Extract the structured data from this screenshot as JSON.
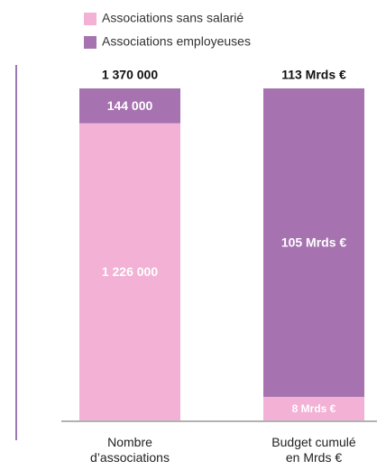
{
  "chart_data": {
    "type": "stacked_bar_100",
    "categories": [
      "Nombre d’associations",
      "Budget cumulé en Mrds €"
    ],
    "series": [
      {
        "name": "Associations sans salarié",
        "color": "#f2b1d5",
        "values": [
          1226000,
          8
        ],
        "value_labels": [
          "1 226 000",
          "8 Mrds €"
        ]
      },
      {
        "name": "Associations employeuses",
        "color": "#a673b0",
        "values": [
          144000,
          105
        ],
        "value_labels": [
          "144 000",
          "105 Mrds €"
        ]
      }
    ],
    "totals": [
      1370000,
      113
    ],
    "total_labels": [
      "1 370 000",
      "113 Mrds €"
    ]
  }
}
